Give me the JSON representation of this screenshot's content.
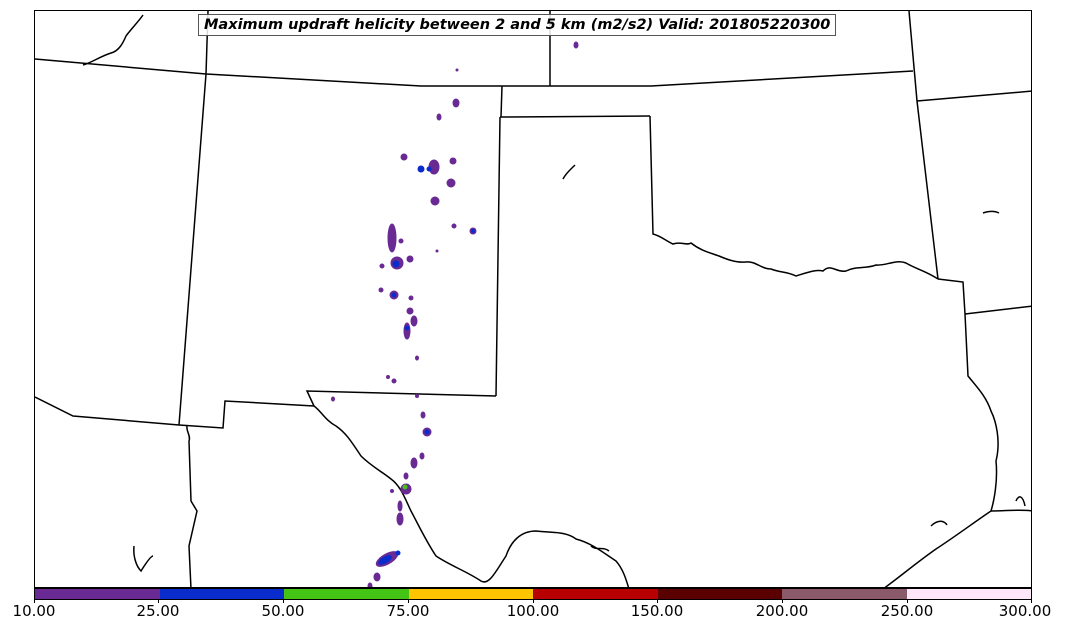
{
  "title": "Maximum updraft helicity between 2 and 5 km (m2/s2) Valid: 201805220300",
  "colorbar": {
    "bounds": [
      "10.00",
      "25.00",
      "50.00",
      "75.00",
      "100.00",
      "150.00",
      "200.00",
      "250.00",
      "300.00"
    ],
    "colors": [
      "#6a2a94",
      "#0a2ccc",
      "#44c414",
      "#ffc400",
      "#b80000",
      "#5a0000",
      "#8a5a6a",
      "#ffe6f8"
    ]
  },
  "map": {
    "content": "helicity-swaths",
    "swath_colors": {
      "outline": "#6a2a94",
      "low": "#6a2a94",
      "mid": "#0a2ccc",
      "high": "#44c414"
    }
  }
}
